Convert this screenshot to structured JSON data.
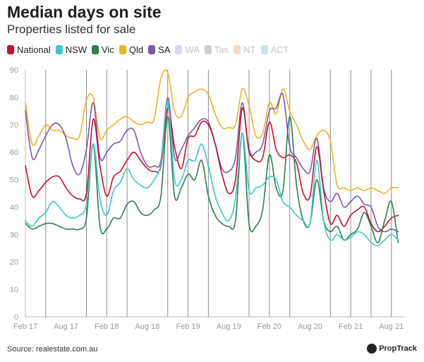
{
  "header": {
    "title": "Median days on site",
    "subtitle": "Properties listed for sale"
  },
  "footer": {
    "source": "Source: realestate.com.au",
    "logo_text": "PropTrack"
  },
  "chart_data": {
    "type": "line",
    "title": "Median days on site",
    "subtitle": "Properties listed for sale",
    "xlabel": "",
    "ylabel": "",
    "ylim": [
      0,
      90
    ],
    "yticks": [
      0,
      10,
      20,
      30,
      40,
      50,
      60,
      70,
      80,
      90
    ],
    "xlim": [
      0,
      56
    ],
    "x_ticks": [
      {
        "label": "Feb 17",
        "x": 0
      },
      {
        "label": "Aug 17",
        "x": 6
      },
      {
        "label": "Feb 18",
        "x": 12
      },
      {
        "label": "Aug 18",
        "x": 18
      },
      {
        "label": "Feb 19",
        "x": 24
      },
      {
        "label": "Aug 19",
        "x": 30
      },
      {
        "label": "Feb 20",
        "x": 36
      },
      {
        "label": "Aug 20",
        "x": 42
      },
      {
        "label": "Feb 21",
        "x": 48
      },
      {
        "label": "Aug 21",
        "x": 54
      }
    ],
    "vertical_lines_at": [
      3,
      9,
      12,
      15,
      21,
      24,
      27,
      33,
      36,
      39,
      45,
      48,
      51,
      54
    ],
    "grid": false,
    "legend_position": "top-left",
    "series": [
      {
        "name": "National",
        "color": "#c8102e",
        "visible": true,
        "width": 1.6,
        "values": [
          55,
          44,
          46,
          49,
          51,
          51,
          47,
          44,
          43,
          45,
          72,
          55,
          44,
          51,
          53,
          57,
          60,
          57,
          54,
          53,
          55,
          76,
          62,
          54,
          65,
          66,
          71,
          70,
          63,
          52,
          45,
          50,
          76,
          61,
          57,
          58,
          71,
          61,
          58,
          59,
          56,
          45,
          44,
          62,
          46,
          34,
          37,
          33,
          37,
          39,
          40,
          34,
          31,
          33,
          36,
          37
        ]
      },
      {
        "name": "NSW",
        "color": "#3cc8c8",
        "visible": true,
        "width": 1.6,
        "values": [
          35,
          33,
          36,
          38,
          42,
          40,
          37,
          36,
          37,
          41,
          63,
          43,
          37,
          46,
          49,
          54,
          50,
          48,
          47,
          50,
          56,
          78,
          50,
          50,
          57,
          57,
          63,
          55,
          44,
          38,
          35,
          43,
          67,
          46,
          47,
          48,
          51,
          50,
          42,
          40,
          37,
          35,
          34,
          57,
          35,
          28,
          30,
          28,
          29,
          31,
          30,
          27,
          26,
          28,
          30,
          28
        ]
      },
      {
        "name": "Vic",
        "color": "#2e7d4f",
        "visible": true,
        "width": 1.6,
        "values": [
          34,
          32,
          33,
          34,
          34,
          33,
          32,
          32,
          32,
          36,
          63,
          33,
          32,
          36,
          36,
          41,
          42,
          38,
          37,
          39,
          44,
          73,
          44,
          47,
          52,
          50,
          57,
          44,
          37,
          34,
          33,
          35,
          67,
          34,
          33,
          39,
          59,
          47,
          46,
          73,
          48,
          35,
          34,
          50,
          35,
          31,
          33,
          28,
          30,
          32,
          38,
          33,
          27,
          35,
          42,
          27
        ]
      },
      {
        "name": "Qld",
        "color": "#f0b323",
        "visible": true,
        "width": 1.6,
        "values": [
          78,
          63,
          66,
          70,
          68,
          68,
          66,
          65,
          66,
          79,
          80,
          65,
          68,
          70,
          72,
          73,
          71,
          70,
          71,
          72,
          87,
          89,
          75,
          73,
          80,
          82,
          83,
          81,
          74,
          69,
          69,
          70,
          83,
          77,
          66,
          67,
          78,
          74,
          83,
          75,
          70,
          64,
          61,
          66,
          68,
          64,
          48,
          47,
          46,
          47,
          46,
          47,
          46,
          45,
          47,
          47
        ]
      },
      {
        "name": "SA",
        "color": "#7e57a8",
        "visible": true,
        "width": 1.6,
        "values": [
          75,
          58,
          61,
          66,
          70,
          70,
          65,
          55,
          52,
          61,
          78,
          58,
          60,
          63,
          64,
          68,
          68,
          60,
          55,
          55,
          57,
          80,
          58,
          61,
          66,
          69,
          72,
          71,
          63,
          54,
          53,
          58,
          78,
          60,
          60,
          63,
          75,
          76,
          81,
          62,
          58,
          54,
          53,
          65,
          47,
          42,
          45,
          40,
          42,
          44,
          41,
          40,
          33,
          31,
          32,
          31
        ]
      },
      {
        "name": "WA",
        "color": "#dcd6f0",
        "visible": false,
        "values": []
      },
      {
        "name": "Tas",
        "color": "#cfcfcf",
        "visible": false,
        "values": []
      },
      {
        "name": "NT",
        "color": "#f7d9c4",
        "visible": false,
        "values": []
      },
      {
        "name": "ACT",
        "color": "#c8e4f0",
        "visible": false,
        "values": []
      }
    ]
  }
}
